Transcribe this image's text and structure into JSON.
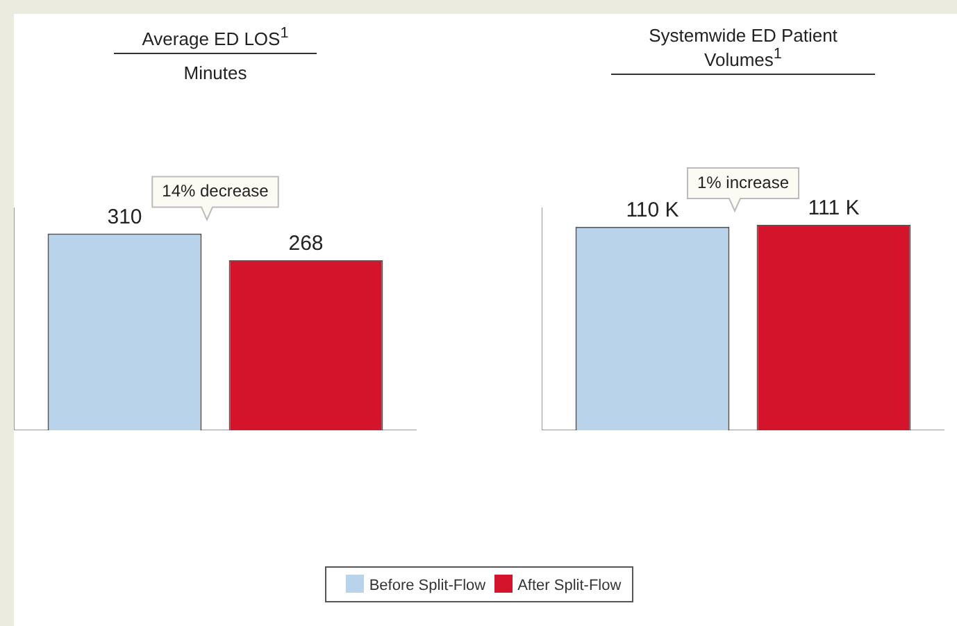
{
  "chart_data": [
    {
      "type": "bar",
      "title": "Average ED LOS$^{1}$",
      "subtitle": "Minutes",
      "categories": [
        null
      ],
      "series": [
        {
          "name": "Before Split-Flow",
          "color": "#b9d3ea",
          "values": [
            310
          ]
        },
        {
          "name": "After Split-Flow",
          "color": "#d4142a",
          "values": [
            268
          ]
        }
      ],
      "data_labels": true,
      "annotations": [
        "14% decrease"
      ],
      "tick_labels": false,
      "grid": false,
      "legend": "bottom"
    },
    {
      "type": "bar",
      "title": "Systemwide ED Patient Volumes$^{1}$",
      "categories": [
        null
      ],
      "series": [
        {
          "color": "#b9d3ea",
          "values": [
            110
          ],
          "value_labels": [
            "110 K"
          ]
        },
        {
          "color": "#d4142a",
          "values": [
            111
          ],
          "value_labels": [
            "111 K"
          ]
        }
      ],
      "annotations": [
        "1% increase"
      ],
      "tick_labels": false,
      "grid": false
    }
  ]
}
